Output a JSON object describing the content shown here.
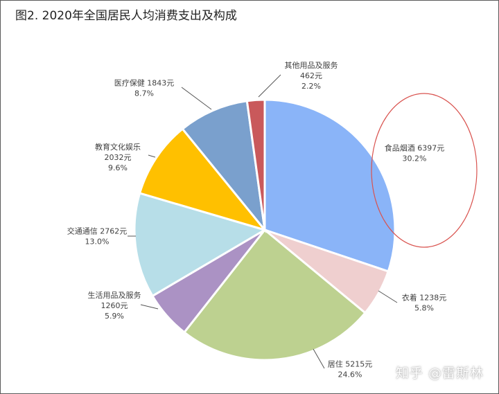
{
  "figure": {
    "title": "图2. 2020年全国居民人均消费支出及构成",
    "watermark": "知乎 @雷斯林",
    "highlight_color": "#d9534f"
  },
  "chart_data": {
    "type": "pie",
    "title": "图2. 2020年全国居民人均消费支出及构成",
    "unit": "元",
    "start_angle_deg": 0,
    "direction": "clockwise",
    "highlighted_slice": "食品烟酒",
    "slices": [
      {
        "label": "食品烟酒",
        "value": 6397,
        "value_text": "6397元",
        "percent": "30.2%",
        "color": "#8ab4f8"
      },
      {
        "label": "衣着",
        "value": 1238,
        "value_text": "1238元",
        "percent": "5.8%",
        "color": "#efcfcf"
      },
      {
        "label": "居住",
        "value": 5215,
        "value_text": "5215元",
        "percent": "24.6%",
        "color": "#bdd190"
      },
      {
        "label": "生活用品及服务",
        "value": 1260,
        "value_text": "1260元",
        "percent": "5.9%",
        "color": "#ab92c4"
      },
      {
        "label": "交通通信",
        "value": 2762,
        "value_text": "2762元",
        "percent": "13.0%",
        "color": "#b7dee8"
      },
      {
        "label": "教育文化娱乐",
        "value": 2032,
        "value_text": "2032元",
        "percent": "9.6%",
        "color": "#ffc000"
      },
      {
        "label": "医疗保健",
        "value": 1843,
        "value_text": "1843元",
        "percent": "8.7%",
        "color": "#7aa0cd"
      },
      {
        "label": "其他用品及服务",
        "value": 462,
        "value_text": "462元",
        "percent": "2.2%",
        "color": "#c9595b"
      }
    ]
  }
}
